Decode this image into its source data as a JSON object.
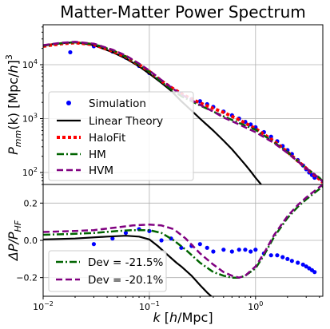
{
  "colors": {
    "simulation": "#0000ff",
    "linear_theory": "#000000",
    "halofit": "#ff0000",
    "hm": "#006400",
    "hvm": "#800080",
    "grid": "#b0b0b0"
  },
  "chart_data": [
    {
      "type": "line",
      "title": "Matter-Matter Power Spectrum",
      "xlabel": "",
      "ylabel": "P_mm(k) [Mpc/h]^3",
      "ylabel_parts": {
        "main": "P",
        "sub": "mm",
        "args": "(k) [Mpc/",
        "h": "h",
        "close": "]",
        "sup": "3"
      },
      "xscale": "log",
      "yscale": "log",
      "xlim": [
        0.01,
        4.3
      ],
      "ylim": [
        60,
        55000
      ],
      "grid": true,
      "legend_location": "lower-left",
      "yticks": [
        {
          "value": 100,
          "label": "10",
          "exp": "2"
        },
        {
          "value": 1000,
          "label": "10",
          "exp": "3"
        },
        {
          "value": 10000,
          "label": "10",
          "exp": "4"
        }
      ],
      "series": [
        {
          "name": "Simulation",
          "style": "points",
          "x": [
            0.018,
            0.03,
            0.045,
            0.06,
            0.08,
            0.1,
            0.13,
            0.16,
            0.2,
            0.25,
            0.3,
            0.35,
            0.4,
            0.5,
            0.6,
            0.7,
            0.8,
            0.9,
            1.0,
            1.2,
            1.4,
            1.6,
            1.8,
            2.0,
            2.2,
            2.5,
            2.8,
            3.0,
            3.2,
            3.4,
            3.6
          ],
          "y": [
            17000,
            22000,
            17500,
            13500,
            9500,
            7000,
            4900,
            3700,
            2900,
            2300,
            2100,
            1850,
            1650,
            1350,
            1150,
            1000,
            870,
            780,
            690,
            560,
            460,
            380,
            310,
            260,
            220,
            170,
            135,
            115,
            100,
            90,
            80
          ]
        },
        {
          "name": "Linear Theory",
          "style": "solid",
          "x": [
            0.01,
            0.015,
            0.02,
            0.03,
            0.045,
            0.06,
            0.08,
            0.1,
            0.13,
            0.16,
            0.2,
            0.25,
            0.3,
            0.4,
            0.5,
            0.6,
            0.7,
            0.8,
            0.9,
            1.0,
            1.2
          ],
          "y": [
            23000,
            25000,
            26000,
            23000,
            17000,
            13000,
            9300,
            6800,
            4600,
            3300,
            2100,
            1400,
            1000,
            600,
            390,
            270,
            190,
            140,
            105,
            80,
            52
          ]
        },
        {
          "name": "HaloFit",
          "style": "dotted",
          "x": [
            0.01,
            0.015,
            0.02,
            0.03,
            0.045,
            0.06,
            0.08,
            0.1,
            0.13,
            0.16,
            0.2,
            0.25,
            0.3,
            0.4,
            0.5,
            0.7,
            1.0,
            1.5,
            2.0,
            3.0,
            4.0,
            4.3
          ],
          "y": [
            22000,
            24500,
            25500,
            23500,
            18000,
            14000,
            10000,
            7500,
            5000,
            3800,
            2900,
            2300,
            1950,
            1550,
            1300,
            950,
            650,
            380,
            240,
            120,
            75,
            65
          ]
        },
        {
          "name": "HM",
          "style": "dashdot",
          "x": [
            0.01,
            0.015,
            0.02,
            0.03,
            0.045,
            0.06,
            0.08,
            0.1,
            0.13,
            0.16,
            0.2,
            0.25,
            0.3,
            0.4,
            0.5,
            0.7,
            1.0,
            1.5,
            2.0,
            3.0,
            4.0,
            4.3
          ],
          "y": [
            22500,
            25000,
            26000,
            24000,
            18500,
            14200,
            10000,
            7400,
            4800,
            3500,
            2600,
            2100,
            1750,
            1350,
            1100,
            830,
            620,
            360,
            240,
            120,
            80,
            68
          ]
        },
        {
          "name": "HVM",
          "style": "dashed",
          "x": [
            0.01,
            0.015,
            0.02,
            0.03,
            0.045,
            0.06,
            0.08,
            0.1,
            0.13,
            0.16,
            0.2,
            0.25,
            0.3,
            0.4,
            0.5,
            0.7,
            1.0,
            1.5,
            2.0,
            3.0,
            4.0,
            4.3
          ],
          "y": [
            23000,
            25500,
            26500,
            24500,
            19000,
            14800,
            10500,
            7800,
            5200,
            3800,
            2800,
            2200,
            1800,
            1350,
            1050,
            780,
            560,
            350,
            230,
            120,
            78,
            66
          ]
        }
      ]
    },
    {
      "type": "line",
      "title": "",
      "xlabel": "k [h/Mpc]",
      "xlabel_parts": {
        "k": "k",
        "open": " [",
        "h": "h",
        "rest": "/Mpc]"
      },
      "ylabel": "ΔP/P_HF",
      "ylabel_parts": {
        "main": "ΔP/P",
        "sub": "HF"
      },
      "xscale": "log",
      "yscale": "linear",
      "xlim": [
        0.01,
        4.3
      ],
      "ylim": [
        -0.3,
        0.3
      ],
      "grid": true,
      "legend_location": "lower-left",
      "xticks": [
        {
          "value": 0.01,
          "label": "10",
          "exp": "−2"
        },
        {
          "value": 0.1,
          "label": "10",
          "exp": "−1"
        },
        {
          "value": 1,
          "label": "10",
          "exp": "0"
        }
      ],
      "yticks": [
        {
          "value": -0.2,
          "label": "−0.2"
        },
        {
          "value": 0.0,
          "label": "0.0"
        },
        {
          "value": 0.2,
          "label": "0.2"
        }
      ],
      "series": [
        {
          "name": "Simulation",
          "style": "points",
          "legend": false,
          "x": [
            0.03,
            0.045,
            0.06,
            0.08,
            0.1,
            0.13,
            0.16,
            0.2,
            0.25,
            0.3,
            0.35,
            0.4,
            0.5,
            0.6,
            0.7,
            0.8,
            0.9,
            1.0,
            1.2,
            1.4,
            1.6,
            1.8,
            2.0,
            2.2,
            2.5,
            2.8,
            3.0,
            3.2,
            3.4,
            3.6
          ],
          "y": [
            -0.02,
            0.01,
            0.04,
            0.06,
            0.05,
            0.0,
            0.01,
            -0.04,
            -0.03,
            -0.02,
            -0.04,
            -0.06,
            -0.05,
            -0.06,
            -0.05,
            -0.05,
            -0.06,
            -0.05,
            -0.07,
            -0.08,
            -0.08,
            -0.09,
            -0.1,
            -0.11,
            -0.12,
            -0.13,
            -0.14,
            -0.15,
            -0.16,
            -0.17
          ]
        },
        {
          "name": "Linear Theory",
          "style": "solid",
          "legend": false,
          "x": [
            0.01,
            0.02,
            0.04,
            0.06,
            0.08,
            0.1,
            0.12,
            0.15,
            0.18,
            0.2,
            0.25,
            0.3,
            0.35,
            0.4
          ],
          "y": [
            0.005,
            0.01,
            0.02,
            0.025,
            0.02,
            0.005,
            -0.03,
            -0.08,
            -0.12,
            -0.14,
            -0.19,
            -0.24,
            -0.28,
            -0.31
          ]
        },
        {
          "name": "Dev = -21.5%",
          "style": "dashdot",
          "color_key": "hm",
          "x": [
            0.01,
            0.02,
            0.03,
            0.05,
            0.07,
            0.1,
            0.13,
            0.17,
            0.22,
            0.3,
            0.4,
            0.5,
            0.6,
            0.7,
            0.8,
            1.0,
            1.2,
            1.5,
            2.0,
            2.5,
            3.0,
            3.5,
            4.3
          ],
          "y": [
            0.03,
            0.035,
            0.04,
            0.05,
            0.055,
            0.055,
            0.04,
            0.0,
            -0.05,
            -0.12,
            -0.17,
            -0.19,
            -0.2,
            -0.2,
            -0.19,
            -0.15,
            -0.08,
            0.02,
            0.12,
            0.18,
            0.22,
            0.25,
            0.29
          ]
        },
        {
          "name": "Dev = -20.1%",
          "style": "dashed",
          "color_key": "hvm",
          "x": [
            0.01,
            0.02,
            0.03,
            0.05,
            0.07,
            0.1,
            0.13,
            0.17,
            0.22,
            0.3,
            0.4,
            0.5,
            0.6,
            0.7,
            0.8,
            1.0,
            1.2,
            1.5,
            2.0,
            2.5,
            3.0,
            3.5,
            4.3
          ],
          "y": [
            0.045,
            0.05,
            0.055,
            0.07,
            0.08,
            0.085,
            0.08,
            0.06,
            0.01,
            -0.07,
            -0.13,
            -0.17,
            -0.19,
            -0.2,
            -0.19,
            -0.14,
            -0.07,
            0.03,
            0.13,
            0.19,
            0.23,
            0.26,
            0.3
          ]
        }
      ]
    }
  ]
}
